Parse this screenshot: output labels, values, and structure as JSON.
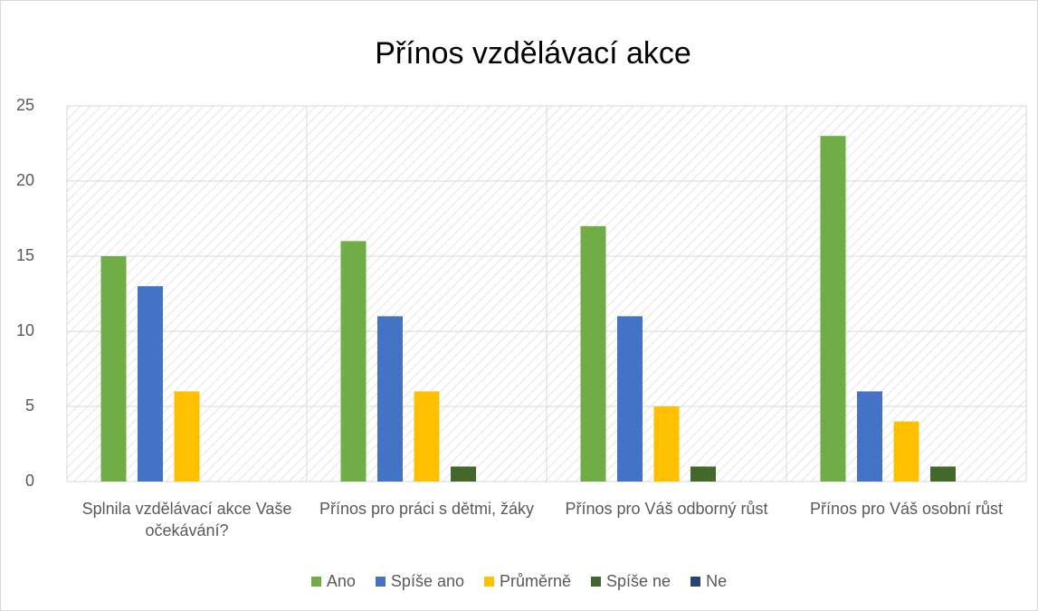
{
  "chart_data": {
    "type": "bar",
    "title": "Přínos vzdělávací akce",
    "categories": [
      "Splnila vzdělávací akce Vaše očekávání?",
      "Přínos pro práci s dětmi, žáky",
      "Přínos pro Váš odborný růst",
      "Přínos pro Váš osobní růst"
    ],
    "series": [
      {
        "name": "Ano",
        "color": "#70ad47",
        "values": [
          15,
          16,
          17,
          23
        ]
      },
      {
        "name": "Spíše ano",
        "color": "#4472c4",
        "values": [
          13,
          11,
          11,
          6
        ]
      },
      {
        "name": "Průměrně",
        "color": "#ffc000",
        "values": [
          6,
          6,
          5,
          4
        ]
      },
      {
        "name": "Spíše ne",
        "color": "#43682b",
        "values": [
          0,
          1,
          1,
          1
        ]
      },
      {
        "name": "Ne",
        "color": "#264478",
        "values": [
          0,
          0,
          0,
          0
        ]
      }
    ],
    "ylim": [
      0,
      25
    ],
    "yticks": [
      0,
      5,
      10,
      15,
      20,
      25
    ],
    "grid": true,
    "legend": "bottom"
  }
}
